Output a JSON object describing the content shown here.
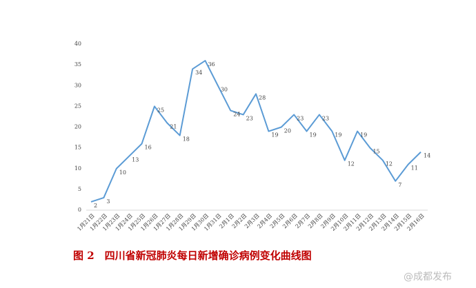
{
  "chart_data": {
    "type": "line",
    "caption": "图 2　四川省新冠肺炎每日新增确诊病例变化曲线图",
    "watermark": "@成都发布",
    "categories": [
      "1月21日",
      "1月22日",
      "1月23日",
      "1月24日",
      "1月25日",
      "1月26日",
      "1月27日",
      "1月28日",
      "1月29日",
      "1月30日",
      "1月31日",
      "2月1日",
      "2月2日",
      "2月3日",
      "2月4日",
      "2月5日",
      "2月6日",
      "2月7日",
      "2月8日",
      "2月9日",
      "2月10日",
      "2月11日",
      "2月12日",
      "2月13日",
      "2月14日",
      "2月15日",
      "2月16日"
    ],
    "values": [
      2,
      3,
      10,
      13,
      16,
      25,
      21,
      18,
      34,
      36,
      30,
      24,
      23,
      28,
      19,
      20,
      23,
      19,
      23,
      19,
      12,
      19,
      15,
      12,
      7,
      11,
      14
    ],
    "color": "#5b9bd5",
    "ylim": [
      0,
      40
    ],
    "yticks": [
      0,
      5,
      10,
      15,
      20,
      25,
      30,
      35,
      40
    ],
    "grid": false
  }
}
